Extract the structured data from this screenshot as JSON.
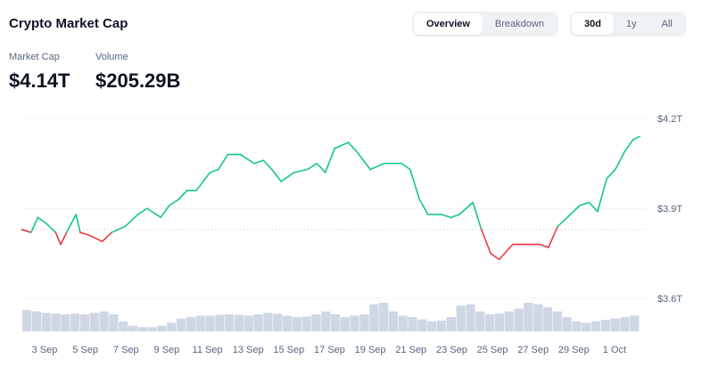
{
  "header": {
    "title": "Crypto Market Cap",
    "view_tabs": [
      {
        "label": "Overview",
        "active": true
      },
      {
        "label": "Breakdown",
        "active": false
      }
    ],
    "range_tabs": [
      {
        "label": "30d",
        "active": true
      },
      {
        "label": "1y",
        "active": false
      },
      {
        "label": "All",
        "active": false
      }
    ]
  },
  "stats": [
    {
      "label": "Market Cap",
      "value": "$4.14T"
    },
    {
      "label": "Volume",
      "value": "$205.29B"
    }
  ],
  "colors": {
    "up": "#16c784",
    "down": "#ea3943",
    "volume": "#cfd6e4"
  },
  "chart_data": {
    "type": "line",
    "ylim": [
      3.6,
      4.2
    ],
    "y_ticks": [
      "$4.2T",
      "$3.9T",
      "$3.6T"
    ],
    "y_tick_values": [
      4.2,
      3.9,
      3.6
    ],
    "x_ticks": [
      "3 Sep",
      "5 Sep",
      "7 Sep",
      "9 Sep",
      "11 Sep",
      "13 Sep",
      "15 Sep",
      "17 Sep",
      "19 Sep",
      "21 Sep",
      "23 Sep",
      "25 Sep",
      "27 Sep",
      "29 Sep",
      "1 Oct"
    ],
    "baseline": 3.83,
    "series": [
      {
        "values": [
          [
            "09-01 21:00",
            3.83
          ],
          [
            "09-02 08:00",
            3.82
          ],
          [
            "09-02 16:00",
            3.87
          ],
          [
            "09-03 02:00",
            3.85
          ],
          [
            "09-03 13:00",
            3.82
          ],
          [
            "09-03 19:00",
            3.78
          ],
          [
            "09-04 02:00",
            3.82
          ],
          [
            "09-04 13:00",
            3.88
          ],
          [
            "09-04 18:00",
            3.82
          ],
          [
            "09-05 05:00",
            3.81
          ],
          [
            "09-05 20:00",
            3.79
          ],
          [
            "09-06 07:00",
            3.82
          ],
          [
            "09-06 23:00",
            3.84
          ],
          [
            "09-07 14:00",
            3.88
          ],
          [
            "09-08 01:00",
            3.9
          ],
          [
            "09-08 17:00",
            3.87
          ],
          [
            "09-09 03:00",
            3.91
          ],
          [
            "09-09 14:00",
            3.93
          ],
          [
            "09-10 00:00",
            3.96
          ],
          [
            "09-10 11:00",
            3.96
          ],
          [
            "09-11 03:00",
            4.02
          ],
          [
            "09-11 13:00",
            4.03
          ],
          [
            "09-12 00:00",
            4.08
          ],
          [
            "09-12 15:00",
            4.08
          ],
          [
            "09-13 07:00",
            4.05
          ],
          [
            "09-13 18:00",
            4.06
          ],
          [
            "09-14 04:00",
            4.03
          ],
          [
            "09-14 15:00",
            3.99
          ],
          [
            "09-15 06:00",
            4.02
          ],
          [
            "09-15 22:00",
            4.03
          ],
          [
            "09-16 09:00",
            4.05
          ],
          [
            "09-16 19:00",
            4.02
          ],
          [
            "09-17 06:00",
            4.1
          ],
          [
            "09-17 22:00",
            4.12
          ],
          [
            "09-18 08:00",
            4.09
          ],
          [
            "09-19 00:00",
            4.03
          ],
          [
            "09-19 16:00",
            4.05
          ],
          [
            "09-20 13:00",
            4.05
          ],
          [
            "09-20 23:00",
            4.03
          ],
          [
            "09-21 10:00",
            3.93
          ],
          [
            "09-21 20:00",
            3.88
          ],
          [
            "09-22 12:00",
            3.88
          ],
          [
            "09-22 23:00",
            3.87
          ],
          [
            "09-23 09:00",
            3.88
          ],
          [
            "09-24 01:00",
            3.92
          ],
          [
            "09-24 11:00",
            3.83
          ],
          [
            "09-24 22:00",
            3.75
          ],
          [
            "09-25 08:00",
            3.73
          ],
          [
            "09-26 00:00",
            3.78
          ],
          [
            "09-26 16:00",
            3.78
          ],
          [
            "09-27 08:00",
            3.78
          ],
          [
            "09-27 18:00",
            3.77
          ],
          [
            "09-28 05:00",
            3.84
          ],
          [
            "09-28 20:00",
            3.88
          ],
          [
            "09-29 07:00",
            3.91
          ],
          [
            "09-29 18:00",
            3.92
          ],
          [
            "09-30 04:00",
            3.89
          ],
          [
            "09-30 15:00",
            4.0
          ],
          [
            "10-01 01:00",
            4.03
          ],
          [
            "10-01 12:00",
            4.09
          ],
          [
            "10-01 22:00",
            4.13
          ],
          [
            "10-02 06:00",
            4.14
          ]
        ]
      }
    ],
    "volume_relative": [
      0.75,
      0.7,
      0.65,
      0.62,
      0.6,
      0.62,
      0.6,
      0.65,
      0.7,
      0.6,
      0.35,
      0.2,
      0.15,
      0.15,
      0.2,
      0.3,
      0.45,
      0.5,
      0.55,
      0.55,
      0.58,
      0.6,
      0.58,
      0.55,
      0.6,
      0.65,
      0.62,
      0.55,
      0.5,
      0.52,
      0.6,
      0.7,
      0.6,
      0.5,
      0.55,
      0.6,
      0.95,
      1.0,
      0.7,
      0.55,
      0.5,
      0.42,
      0.35,
      0.38,
      0.5,
      0.9,
      0.95,
      0.7,
      0.6,
      0.62,
      0.7,
      0.8,
      1.0,
      0.95,
      0.85,
      0.7,
      0.5,
      0.35,
      0.3,
      0.35,
      0.4,
      0.45,
      0.5,
      0.55
    ]
  }
}
